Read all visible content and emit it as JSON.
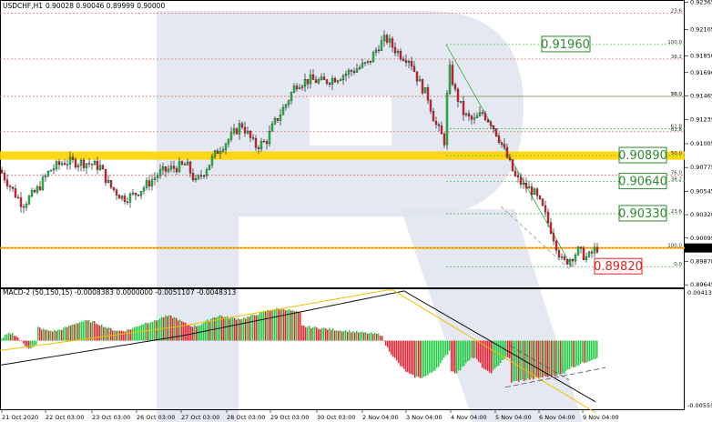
{
  "header": {
    "symbol": "USDCHF,H1",
    "ohlc": "0.90028 0.90046 0.89999 0.90000"
  },
  "macd_header": "MACD-2 (50,150,15) -0.0008383 0.0000000 -0.0051107 -0.0048313",
  "colors": {
    "bull": "#22cc44",
    "bear": "#ee2233",
    "fib_red": "#e05555",
    "fib_green": "#3aaa3a",
    "support_yellow": "#ffd400",
    "watermark": "#dfe5ef"
  },
  "chart_data": [
    {
      "type": "candlestick",
      "title": "USDCHF,H1",
      "y_ticks": [
        "0.92365",
        "0.92105",
        "0.91850",
        "0.91690",
        "0.91465",
        "0.91235",
        "0.91005",
        "0.90775",
        "0.90545",
        "0.90320",
        "0.90095",
        "0.89870",
        "0.89645"
      ],
      "x_ticks": [
        "21 Oct 2020",
        "22 Oct 03:00",
        "23 Oct 03:00",
        "26 Oct 03:00",
        "27 Oct 03:00",
        "28 Oct 03:00",
        "29 Oct 03:00",
        "30 Oct 03:00",
        "2 Nov 04:00",
        "3 Nov 04:00",
        "4 Nov 04:00",
        "5 Nov 04:00",
        "6 Nov 04:00",
        "9 Nov 04:00"
      ],
      "ylim": [
        0.8962,
        0.9238
      ],
      "current_price": "0.90000",
      "path": [
        [
          0,
          0.9075
        ],
        [
          18,
          0.905
        ],
        [
          25,
          0.9042
        ],
        [
          40,
          0.9055
        ],
        [
          55,
          0.9075
        ],
        [
          70,
          0.9083
        ],
        [
          95,
          0.9082
        ],
        [
          110,
          0.9078
        ],
        [
          120,
          0.906
        ],
        [
          135,
          0.9048
        ],
        [
          145,
          0.905
        ],
        [
          160,
          0.906
        ],
        [
          175,
          0.9072
        ],
        [
          190,
          0.9077
        ],
        [
          205,
          0.908
        ],
        [
          215,
          0.9063
        ],
        [
          225,
          0.9075
        ],
        [
          240,
          0.9095
        ],
        [
          255,
          0.9108
        ],
        [
          265,
          0.912
        ],
        [
          280,
          0.9098
        ],
        [
          292,
          0.9102
        ],
        [
          300,
          0.9118
        ],
        [
          315,
          0.914
        ],
        [
          325,
          0.9158
        ],
        [
          340,
          0.9162
        ],
        [
          355,
          0.916
        ],
        [
          372,
          0.9165
        ],
        [
          390,
          0.9172
        ],
        [
          405,
          0.9178
        ],
        [
          415,
          0.9194
        ],
        [
          424,
          0.9202
        ],
        [
          432,
          0.9193
        ],
        [
          440,
          0.9186
        ],
        [
          450,
          0.9182
        ],
        [
          460,
          0.916
        ],
        [
          470,
          0.9145
        ],
        [
          478,
          0.912
        ],
        [
          488,
          0.9103
        ],
        [
          493,
          0.9175
        ],
        [
          500,
          0.915
        ],
        [
          510,
          0.9128
        ],
        [
          520,
          0.9122
        ],
        [
          530,
          0.913
        ],
        [
          540,
          0.912
        ],
        [
          550,
          0.9102
        ],
        [
          558,
          0.9085
        ],
        [
          566,
          0.9068
        ],
        [
          575,
          0.906
        ],
        [
          585,
          0.9055
        ],
        [
          595,
          0.904
        ],
        [
          605,
          0.9018
        ],
        [
          612,
          0.9
        ],
        [
          618,
          0.8985
        ],
        [
          626,
          0.899
        ],
        [
          635,
          0.8997
        ],
        [
          645,
          0.899
        ],
        [
          655,
          0.9
        ]
      ],
      "fib_levels": [
        {
          "label": "0.0",
          "value": 0.8982,
          "color": "#3aaa3a"
        },
        {
          "label": "23.6",
          "value": 0.9033,
          "color": "#3aaa3a"
        },
        {
          "label": "38.2",
          "value": 0.9064,
          "color": "#3aaa3a"
        },
        {
          "label": "50.0",
          "value": 0.9089,
          "color": "#3aaa3a"
        },
        {
          "label": "61.8",
          "value": 0.9115,
          "color": "#3aaa3a"
        },
        {
          "label": "76.0",
          "value": 0.9146,
          "color": "#3aaa3a"
        },
        {
          "label": "100.0",
          "value": 0.9196,
          "color": "#3aaa3a"
        },
        {
          "label": "23.6",
          "value": 0.9226,
          "color": "#e05555"
        },
        {
          "label": "38.2",
          "value": 0.9182,
          "color": "#e05555"
        },
        {
          "label": "50.0",
          "value": 0.9146,
          "color": "#e05555"
        },
        {
          "label": "61.8",
          "value": 0.9112,
          "color": "#e05555"
        },
        {
          "label": "76.0",
          "value": 0.907,
          "color": "#e05555"
        },
        {
          "label": "100.0",
          "value": 0.9,
          "color": "#e05555"
        }
      ],
      "price_boxes": [
        {
          "value": 0.9196,
          "text": "0.91960",
          "color": "#2e8b2e"
        },
        {
          "value": 0.9089,
          "text": "0.90890",
          "color": "#2e8b2e"
        },
        {
          "value": 0.9064,
          "text": "0.90640",
          "color": "#2e8b2e"
        },
        {
          "value": 0.9033,
          "text": "0.90330",
          "color": "#2e8b2e"
        },
        {
          "value": 0.8982,
          "text": "0.89820",
          "color": "#e02020"
        }
      ],
      "support_zone": [
        0.9085,
        0.9093
      ],
      "support_line": 0.9
    },
    {
      "type": "histogram",
      "title": "MACD-2 (50,150,15)",
      "y_ticks": [
        "0.0041361",
        "-0.0055587"
      ],
      "ylim": [
        -0.0056,
        0.0042
      ]
    }
  ]
}
